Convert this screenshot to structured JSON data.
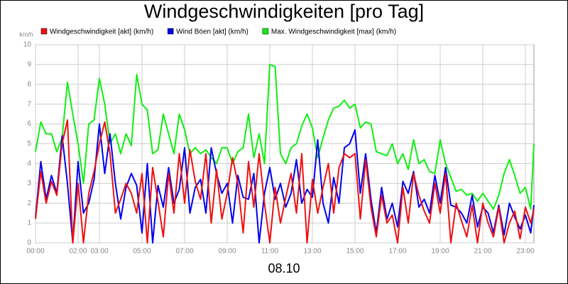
{
  "chart_data": {
    "type": "line",
    "title": "Windgeschwindigkeiten [pro Tag]",
    "y_label": "km/h",
    "x_label": "08.10",
    "x": [
      0,
      0.25,
      0.5,
      0.75,
      1,
      1.25,
      1.5,
      1.75,
      2,
      2.25,
      2.5,
      2.75,
      3,
      3.25,
      3.5,
      3.75,
      4,
      4.25,
      4.5,
      4.75,
      5,
      5.25,
      5.5,
      5.75,
      6,
      6.25,
      6.5,
      6.75,
      7,
      7.25,
      7.5,
      7.75,
      8,
      8.25,
      8.5,
      8.75,
      9,
      9.25,
      9.5,
      9.75,
      10,
      10.25,
      10.5,
      10.75,
      11,
      11.25,
      11.5,
      11.75,
      12,
      12.25,
      12.5,
      12.75,
      13,
      13.25,
      13.5,
      13.75,
      14,
      14.25,
      14.5,
      14.75,
      15,
      15.25,
      15.5,
      15.75,
      16,
      16.25,
      16.5,
      16.75,
      17,
      17.25,
      17.5,
      17.75,
      18,
      18.25,
      18.5,
      18.75,
      19,
      19.25,
      19.5,
      19.75,
      20,
      20.25,
      20.5,
      20.75,
      21,
      21.25,
      21.5,
      21.75,
      22,
      22.25,
      22.5,
      22.75,
      23,
      23.25,
      23.4
    ],
    "series": [
      {
        "name": "Windgeschwindigkeit [akt] (km/h)",
        "color": "#ee1111",
        "values": [
          1.2,
          3.6,
          2.0,
          3.1,
          2.4,
          5.0,
          6.2,
          0.0,
          3.0,
          0.0,
          2.5,
          3.6,
          5.0,
          6.1,
          4.5,
          1.5,
          2.2,
          3.0,
          2.5,
          1.5,
          3.5,
          0.0,
          3.8,
          2.1,
          0.3,
          3.5,
          1.5,
          4.5,
          2.0,
          4.7,
          3.1,
          2.2,
          4.5,
          1.0,
          3.7,
          1.2,
          2.5,
          4.3,
          3.0,
          0.5,
          4.1,
          1.8,
          4.5,
          2.0,
          0.0,
          2.8,
          1.0,
          2.3,
          3.5,
          1.5,
          4.5,
          0.0,
          3.2,
          1.5,
          2.8,
          4.0,
          1.5,
          3.8,
          4.5,
          4.3,
          4.5,
          1.2,
          4.2,
          1.8,
          0.3,
          2.4,
          1.0,
          1.4,
          0.0,
          2.8,
          1.0,
          3.5,
          2.4,
          1.6,
          1.0,
          3.0,
          1.5,
          3.5,
          0.0,
          2.0,
          1.1,
          0.3,
          1.9,
          0.0,
          2.0,
          1.0,
          0.3,
          1.8,
          0.0,
          1.0,
          1.6,
          0.2,
          1.8,
          1.0,
          1.7
        ]
      },
      {
        "name": "Wind Böen [akt] (km/h)",
        "color": "#0000ee",
        "values": [
          1.3,
          4.1,
          2.2,
          3.4,
          2.5,
          5.4,
          3.0,
          0.0,
          4.1,
          1.5,
          2.0,
          3.2,
          6.0,
          3.5,
          5.5,
          3.0,
          1.2,
          2.8,
          3.5,
          2.9,
          0.5,
          4.0,
          0.0,
          2.9,
          1.8,
          3.8,
          2.0,
          2.7,
          4.8,
          1.5,
          2.8,
          3.2,
          1.5,
          4.8,
          3.5,
          2.5,
          3.0,
          1.0,
          3.4,
          2.3,
          2.2,
          3.5,
          0.0,
          2.5,
          3.8,
          2.2,
          3.0,
          1.8,
          2.5,
          4.2,
          2.0,
          2.7,
          2.3,
          5.2,
          2.0,
          1.0,
          3.3,
          2.0,
          4.8,
          5.0,
          5.7,
          2.5,
          4.5,
          2.2,
          0.5,
          2.8,
          1.2,
          2.0,
          0.8,
          3.1,
          2.5,
          3.6,
          1.8,
          2.2,
          1.5,
          3.4,
          2.0,
          3.8,
          1.9,
          1.8,
          1.5,
          1.0,
          2.4,
          0.8,
          1.8,
          1.5,
          0.5,
          1.9,
          0.4,
          2.0,
          1.3,
          0.7,
          1.4,
          0.5,
          1.9
        ]
      },
      {
        "name": "Max. Windgeschwindigkeit [max] (km/h)",
        "color": "#11ee11",
        "values": [
          4.6,
          6.1,
          5.5,
          5.5,
          4.6,
          5.3,
          8.1,
          6.5,
          5.0,
          3.0,
          6.0,
          6.2,
          8.3,
          7.0,
          5.0,
          5.5,
          4.5,
          5.5,
          4.9,
          8.5,
          7.0,
          6.7,
          4.5,
          4.7,
          6.5,
          5.5,
          4.5,
          6.5,
          5.7,
          4.5,
          4.8,
          4.5,
          4.7,
          4.3,
          4.0,
          4.8,
          4.8,
          4.0,
          4.6,
          4.8,
          6.5,
          4.3,
          5.5,
          4.0,
          9.0,
          8.9,
          4.5,
          4.0,
          4.8,
          5.0,
          5.9,
          6.5,
          5.8,
          4.3,
          5.3,
          6.2,
          6.8,
          6.9,
          7.2,
          6.8,
          7.0,
          5.8,
          6.1,
          6.0,
          4.6,
          4.5,
          4.4,
          5.0,
          4.0,
          4.5,
          3.7,
          5.2,
          4.0,
          4.2,
          3.6,
          3.5,
          5.2,
          4.0,
          3.3,
          2.6,
          2.7,
          2.4,
          2.5,
          2.1,
          2.5,
          2.1,
          1.7,
          2.4,
          3.5,
          4.2,
          3.4,
          2.5,
          2.8,
          1.7,
          5.0
        ]
      }
    ],
    "xlim": [
      0,
      23.4
    ],
    "xticks": [
      {
        "value": 0,
        "label": "00:00"
      },
      {
        "value": 2,
        "label": "02:00"
      },
      {
        "value": 3,
        "label": "03:00"
      },
      {
        "value": 5,
        "label": "05:00"
      },
      {
        "value": 7,
        "label": "07:00"
      },
      {
        "value": 9,
        "label": "09:00"
      },
      {
        "value": 11,
        "label": "11:00"
      },
      {
        "value": 13,
        "label": "13:00"
      },
      {
        "value": 15,
        "label": "15:00"
      },
      {
        "value": 17,
        "label": "17:00"
      },
      {
        "value": 19,
        "label": "19:00"
      },
      {
        "value": 21,
        "label": "21:00"
      },
      {
        "value": 23,
        "label": "23:00"
      }
    ],
    "ylim": [
      0,
      10
    ],
    "yticks": [
      0,
      1,
      2,
      3,
      4,
      5,
      6,
      7,
      8,
      9,
      10
    ],
    "grid": true
  }
}
